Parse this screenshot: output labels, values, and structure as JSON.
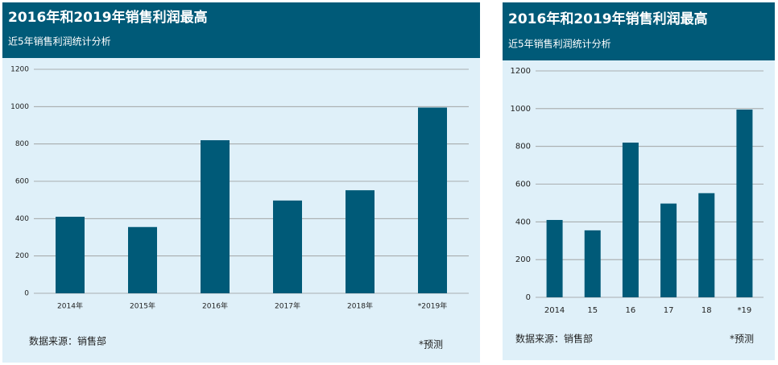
{
  "chart_data": [
    {
      "type": "bar",
      "title": "2016年和2019年销售利润最高",
      "subtitle": "近5年销售利润统计分析",
      "categories": [
        "2014年",
        "2015年",
        "2016年",
        "2017年",
        "2018年",
        "*2019年"
      ],
      "values": [
        410,
        355,
        820,
        497,
        552,
        995
      ],
      "color": "#005a78",
      "ylim": [
        0,
        1200
      ],
      "yticks": [
        0,
        200,
        400,
        600,
        800,
        1000,
        1200
      ],
      "grid": true,
      "source": "数据来源：销售部",
      "note": "*预测"
    },
    {
      "type": "bar",
      "title": "2016年和2019年销售利润最高",
      "subtitle": "近5年销售利润统计分析",
      "categories": [
        "2014",
        "15",
        "16",
        "17",
        "18",
        "*19"
      ],
      "values": [
        410,
        355,
        820,
        497,
        552,
        995
      ],
      "color": "#005a78",
      "ylim": [
        0,
        1200
      ],
      "yticks": [
        0,
        200,
        400,
        600,
        800,
        1000,
        1200
      ],
      "grid": true,
      "source": "数据来源：销售部",
      "note": "*预测"
    }
  ]
}
